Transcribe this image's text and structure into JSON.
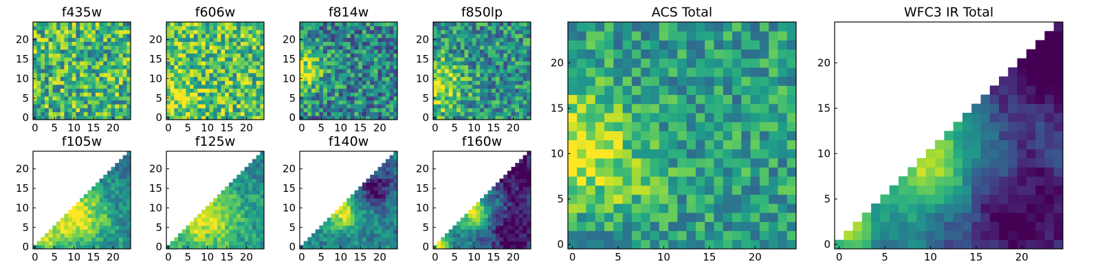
{
  "colormap": "viridis",
  "viridis_stops": [
    "#440154",
    "#482878",
    "#3e4989",
    "#31688e",
    "#26828e",
    "#1f9e89",
    "#35b779",
    "#6ece58",
    "#b5de2b",
    "#fde725"
  ],
  "chart_data": [
    {
      "id": "f435w",
      "type": "heatmap",
      "title": "f435w",
      "grid_size": 25,
      "mask": "none",
      "xticks": [
        0,
        5,
        10,
        15,
        20
      ],
      "yticks": [
        0,
        5,
        10,
        15,
        20
      ],
      "xlim": [
        0,
        24
      ],
      "ylim": [
        0,
        24
      ],
      "pattern": "noise",
      "base": 0.66,
      "noise": 0.32,
      "hot": [],
      "seed": 11
    },
    {
      "id": "f606w",
      "type": "heatmap",
      "title": "f606w",
      "grid_size": 25,
      "mask": "none",
      "xticks": [
        0,
        5,
        10,
        15,
        20
      ],
      "yticks": [
        0,
        5,
        10,
        15,
        20
      ],
      "xlim": [
        0,
        24
      ],
      "ylim": [
        0,
        24
      ],
      "pattern": "noise",
      "base": 0.72,
      "noise": 0.3,
      "hot": [
        {
          "x": 1,
          "y": 6,
          "r": 4,
          "a": 0.22
        }
      ],
      "seed": 23
    },
    {
      "id": "f814w",
      "type": "heatmap",
      "title": "f814w",
      "grid_size": 25,
      "mask": "none",
      "xticks": [
        0,
        5,
        10,
        15,
        20
      ],
      "yticks": [
        0,
        5,
        10,
        15,
        20
      ],
      "xlim": [
        0,
        24
      ],
      "ylim": [
        0,
        24
      ],
      "pattern": "noise",
      "base": 0.46,
      "noise": 0.3,
      "hot": [
        {
          "x": 0,
          "y": 12,
          "r": 4,
          "a": 0.45
        }
      ],
      "seed": 37
    },
    {
      "id": "f850lp",
      "type": "heatmap",
      "title": "f850lp",
      "grid_size": 25,
      "mask": "none",
      "xticks": [
        0,
        5,
        10,
        15,
        20
      ],
      "yticks": [
        0,
        5,
        10,
        15,
        20
      ],
      "xlim": [
        0,
        24
      ],
      "ylim": [
        0,
        24
      ],
      "pattern": "noise",
      "base": 0.5,
      "noise": 0.28,
      "hot": [
        {
          "x": 0,
          "y": 8,
          "r": 5,
          "a": 0.45
        }
      ],
      "seed": 41
    },
    {
      "id": "f105w",
      "type": "heatmap",
      "title": "f105w",
      "grid_size": 25,
      "mask": "lower-triangle",
      "xticks": [
        0,
        5,
        10,
        15,
        20
      ],
      "yticks": [
        0,
        5,
        10,
        15,
        20
      ],
      "xlim": [
        0,
        24
      ],
      "ylim": [
        0,
        24
      ],
      "pattern": "ir",
      "base": 0.5,
      "noise": 0.14,
      "hot": [
        {
          "x": 10,
          "y": 8,
          "r": 5,
          "a": 0.55
        },
        {
          "x": 3,
          "y": 2,
          "r": 2,
          "a": 0.35
        }
      ],
      "seed": 53
    },
    {
      "id": "f125w",
      "type": "heatmap",
      "title": "f125w",
      "grid_size": 25,
      "mask": "lower-triangle",
      "xticks": [
        0,
        5,
        10,
        15,
        20
      ],
      "yticks": [
        0,
        5,
        10,
        15,
        20
      ],
      "xlim": [
        0,
        24
      ],
      "ylim": [
        0,
        24
      ],
      "pattern": "ir",
      "base": 0.52,
      "noise": 0.14,
      "hot": [
        {
          "x": 9,
          "y": 8,
          "r": 6,
          "a": 0.45
        }
      ],
      "seed": 61
    },
    {
      "id": "f140w",
      "type": "heatmap",
      "title": "f140w",
      "grid_size": 25,
      "mask": "lower-triangle",
      "xticks": [
        0,
        5,
        10,
        15,
        20
      ],
      "yticks": [
        0,
        5,
        10,
        15,
        20
      ],
      "xlim": [
        0,
        24
      ],
      "ylim": [
        0,
        24
      ],
      "pattern": "ir",
      "base": 0.46,
      "noise": 0.14,
      "hot": [
        {
          "x": 10,
          "y": 9,
          "r": 3,
          "a": 0.5
        }
      ],
      "seed": 71,
      "dark_zone": [
        {
          "x": 19,
          "y": 15,
          "r": 3,
          "a": 0.45
        }
      ]
    },
    {
      "id": "f160w",
      "type": "heatmap",
      "title": "f160w",
      "grid_size": 25,
      "mask": "lower-triangle",
      "xticks": [
        0,
        5,
        10,
        15,
        20
      ],
      "yticks": [
        0,
        5,
        10,
        15,
        20
      ],
      "xlim": [
        0,
        24
      ],
      "ylim": [
        0,
        24
      ],
      "pattern": "ir",
      "base": 0.4,
      "noise": 0.14,
      "hot": [
        {
          "x": 10,
          "y": 9,
          "r": 3,
          "a": 0.6
        },
        {
          "x": 1,
          "y": 1,
          "r": 2,
          "a": 0.55
        }
      ],
      "seed": 83,
      "dark_zone": [
        {
          "x": 20,
          "y": 3,
          "r": 5,
          "a": 0.4
        },
        {
          "x": 22,
          "y": 18,
          "r": 5,
          "a": 0.4
        }
      ]
    },
    {
      "id": "acs-total",
      "type": "heatmap",
      "title": "ACS Total",
      "grid_size": 25,
      "mask": "none",
      "xticks": [
        0,
        5,
        10,
        15,
        20
      ],
      "yticks": [
        0,
        5,
        10,
        15,
        20
      ],
      "xlim": [
        0,
        24
      ],
      "ylim": [
        0,
        24
      ],
      "pattern": "noise",
      "base": 0.55,
      "noise": 0.22,
      "hot": [
        {
          "x": 0,
          "y": 11,
          "r": 4,
          "a": 0.45
        },
        {
          "x": 6,
          "y": 7,
          "r": 3,
          "a": 0.15
        }
      ],
      "seed": 97
    },
    {
      "id": "wfc3-ir-total",
      "type": "heatmap",
      "title": "WFC3 IR Total",
      "grid_size": 25,
      "mask": "lower-triangle",
      "xticks": [
        0,
        5,
        10,
        15,
        20
      ],
      "yticks": [
        0,
        5,
        10,
        15,
        20
      ],
      "xlim": [
        0,
        24
      ],
      "ylim": [
        0,
        24
      ],
      "pattern": "ir",
      "base": 0.42,
      "noise": 0.08,
      "hot": [
        {
          "x": 10,
          "y": 9,
          "r": 4,
          "a": 0.55
        },
        {
          "x": 1,
          "y": 2,
          "r": 2,
          "a": 0.5
        }
      ],
      "seed": 109,
      "dark_zone": [
        {
          "x": 20,
          "y": 3,
          "r": 6,
          "a": 0.45
        },
        {
          "x": 23,
          "y": 20,
          "r": 5,
          "a": 0.45
        }
      ]
    }
  ]
}
